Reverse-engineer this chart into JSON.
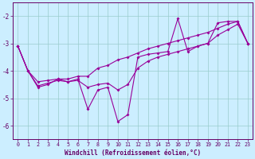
{
  "xlabel": "Windchill (Refroidissement éolien,°C)",
  "hours": [
    0,
    1,
    2,
    3,
    4,
    5,
    6,
    7,
    8,
    9,
    10,
    11,
    12,
    13,
    14,
    15,
    16,
    17,
    18,
    19,
    20,
    21,
    22,
    23
  ],
  "raw": [
    -3.1,
    -4.0,
    -4.6,
    -4.5,
    -4.3,
    -4.4,
    -4.3,
    -5.4,
    -4.7,
    -4.6,
    -5.85,
    -5.6,
    -3.5,
    -3.4,
    -3.35,
    -3.3,
    -2.1,
    -3.3,
    -3.1,
    -3.0,
    -2.25,
    -2.2,
    -2.2,
    -3.0
  ],
  "upper": [
    -3.1,
    -4.0,
    -4.4,
    -4.35,
    -4.3,
    -4.3,
    -4.2,
    -4.2,
    -3.9,
    -3.8,
    -3.6,
    -3.5,
    -3.35,
    -3.2,
    -3.1,
    -3.0,
    -2.9,
    -2.8,
    -2.7,
    -2.6,
    -2.45,
    -2.3,
    -2.2,
    -3.0
  ],
  "lower": [
    -3.1,
    -4.0,
    -4.55,
    -4.45,
    -4.35,
    -4.4,
    -4.35,
    -4.6,
    -4.5,
    -4.45,
    -4.7,
    -4.5,
    -3.9,
    -3.65,
    -3.5,
    -3.4,
    -3.3,
    -3.2,
    -3.1,
    -3.0,
    -2.7,
    -2.5,
    -2.3,
    -3.0
  ],
  "ylim": [
    -6.5,
    -1.5
  ],
  "yticks": [
    -6,
    -5,
    -4,
    -3,
    -2
  ],
  "xlim": [
    -0.5,
    23.5
  ],
  "line_color": "#990099",
  "bg_color": "#cceeff",
  "grid_color": "#99cccc",
  "text_color": "#660066",
  "spine_color": "#660066"
}
